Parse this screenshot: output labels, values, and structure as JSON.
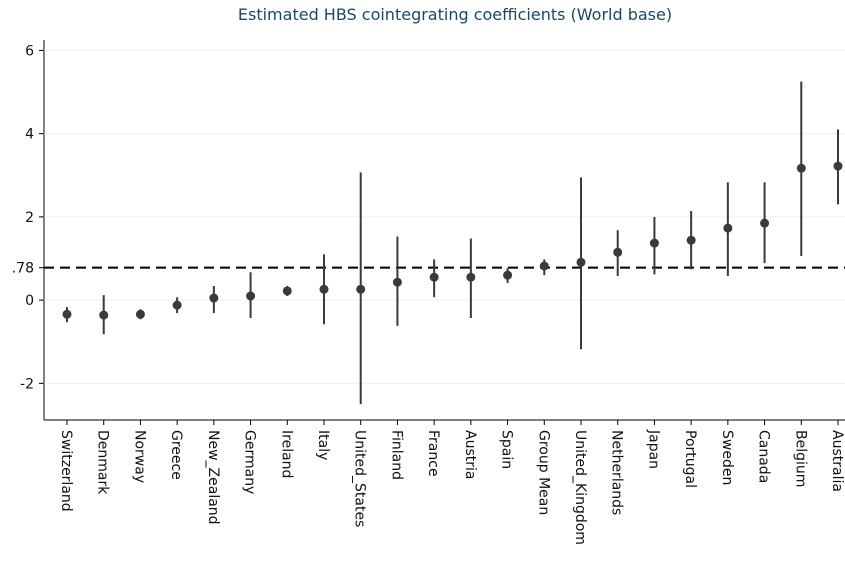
{
  "chart_data": {
    "type": "dot-range",
    "title": "Estimated HBS cointegrating coefficients (World base)",
    "categories": [
      "Switzerland",
      "Denmark",
      "Norway",
      "Greece",
      "New_Zealand",
      "Germany",
      "Ireland",
      "Italy",
      "United_States",
      "Finland",
      "France",
      "Austria",
      "Spain",
      "Group Mean",
      "United_Kingdom",
      "Netherlands",
      "Japan",
      "Portugal",
      "Sweden",
      "Canada",
      "Belgium",
      "Australia"
    ],
    "values": [
      -0.34,
      -0.36,
      -0.34,
      -0.12,
      0.05,
      0.1,
      0.22,
      0.26,
      0.26,
      0.43,
      0.55,
      0.55,
      0.6,
      0.82,
      0.91,
      1.15,
      1.37,
      1.44,
      1.73,
      1.85,
      3.17,
      3.22
    ],
    "lower": [
      -0.53,
      -0.82,
      -0.46,
      -0.31,
      -0.31,
      -0.43,
      0.1,
      -0.58,
      -2.5,
      -0.62,
      0.07,
      -0.43,
      0.41,
      0.6,
      -1.18,
      0.58,
      0.62,
      0.74,
      0.58,
      0.89,
      1.06,
      2.3
    ],
    "upper": [
      -0.17,
      0.12,
      -0.22,
      0.07,
      0.34,
      0.67,
      0.34,
      1.1,
      3.07,
      1.53,
      0.98,
      1.48,
      0.77,
      0.98,
      2.95,
      1.68,
      2.0,
      2.14,
      2.83,
      2.83,
      5.25,
      4.1
    ],
    "color": "#3a3a3a",
    "reference_line": 0.78,
    "ylim": [
      -2.88,
      6.25
    ],
    "yticks": [
      -2,
      0,
      {
        "value": 0.78,
        "label": ".78"
      },
      2,
      4,
      6
    ],
    "grid": true
  }
}
